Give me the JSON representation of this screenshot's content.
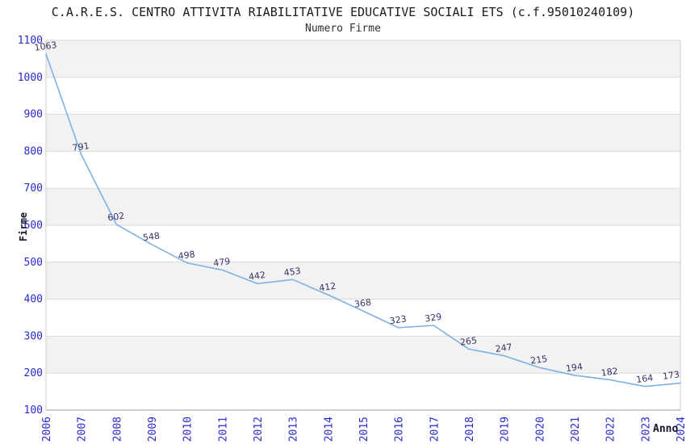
{
  "chart_data": {
    "type": "line",
    "title": "C.A.R.E.S. CENTRO ATTIVITA RIABILITATIVE EDUCATIVE SOCIALI ETS (c.f.95010240109)",
    "subtitle": "Numero Firme",
    "xlabel": "Anno",
    "ylabel": "Firme",
    "categories": [
      "2006",
      "2007",
      "2008",
      "2009",
      "2010",
      "2011",
      "2012",
      "2013",
      "2014",
      "2015",
      "2016",
      "2017",
      "2018",
      "2019",
      "2020",
      "2021",
      "2022",
      "2023",
      "2024"
    ],
    "values": [
      1063,
      791,
      602,
      548,
      498,
      479,
      442,
      453,
      412,
      368,
      323,
      329,
      265,
      247,
      215,
      194,
      182,
      164,
      173
    ],
    "ylim": [
      100,
      1100
    ],
    "ytick_step": 100,
    "x_tick_rotation": -90,
    "value_label_rotation": -8,
    "grid": "horizontal gridlines with alternating background bands",
    "legend": "none",
    "colors": {
      "line": "#7fb0e4",
      "value_label": "#333366",
      "tick_label": "#2a2acc",
      "band": "#f2f2f2",
      "grid": "#d9d9d9",
      "border": "#cccccc",
      "axis": "#999999",
      "title": "#1c1c1c",
      "subtitle": "#303030",
      "axis_title": "#15152a"
    }
  }
}
